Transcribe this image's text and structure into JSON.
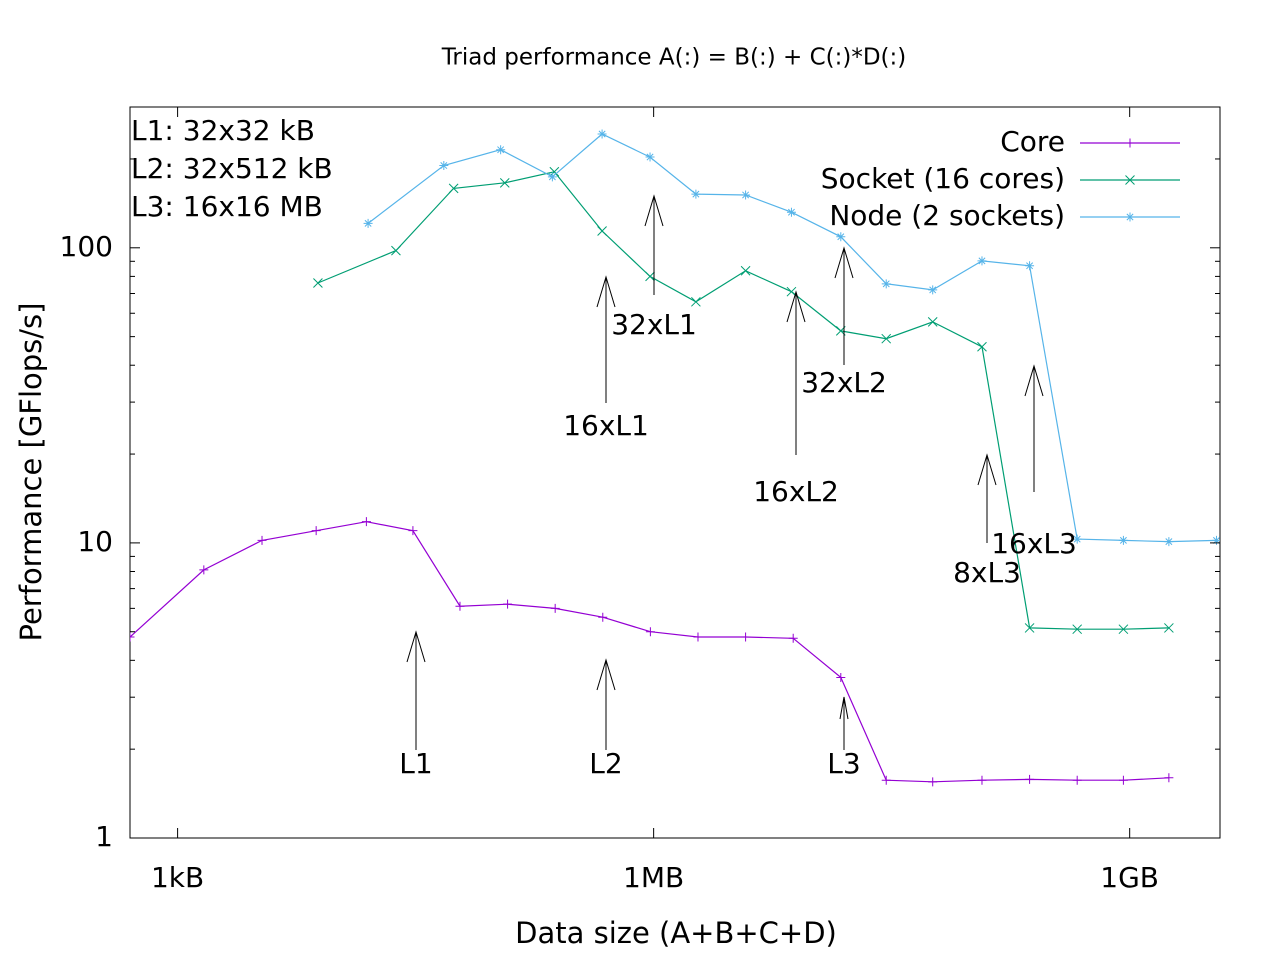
{
  "chart_data": {
    "type": "line",
    "title": "Triad performance A(:) = B(:) + C(:)*D(:)",
    "xlabel": "Data size (A+B+C+D)",
    "ylabel": "Performance [GFlops/s]",
    "xscale": "log",
    "yscale": "log",
    "xlim": [
      512,
      4000000000
    ],
    "ylim": [
      1,
      300
    ],
    "xticks": [
      {
        "value": 1024,
        "label": "1kB"
      },
      {
        "value": 1048576,
        "label": "1MB"
      },
      {
        "value": 1073741824,
        "label": "1GB"
      }
    ],
    "yticks": [
      1,
      10,
      100
    ],
    "yminorticks": [
      2,
      3,
      4,
      5,
      6,
      7,
      8,
      9,
      20,
      30,
      40,
      50,
      60,
      70,
      80,
      90,
      200,
      300
    ],
    "legend": "top-right",
    "info": [
      "L1: 32x32 kB",
      "L2: 32x512 kB",
      "L3: 16x16 MB"
    ],
    "annotations": [
      "L1",
      "L2",
      "L3",
      "16xL1",
      "32xL1",
      "16xL2",
      "32xL2",
      "8xL3",
      "16xL3"
    ],
    "series": [
      {
        "name": "Core",
        "color": "#9400d3",
        "marker": "+",
        "x": [
          512,
          1500,
          3500,
          7700,
          16000,
          31500,
          62500,
          125000,
          250000,
          500000,
          1000000,
          2000000,
          4000000,
          8000000,
          16000000,
          31000000,
          61000000,
          125000000,
          250000000,
          500000000,
          980000000,
          1900000000
        ],
        "values": [
          4.8,
          8.1,
          10.2,
          11.0,
          11.8,
          11.0,
          6.1,
          6.2,
          6.0,
          5.6,
          5.0,
          4.8,
          4.8,
          4.75,
          3.5,
          1.57,
          1.55,
          1.57,
          1.58,
          1.57,
          1.57,
          1.6
        ]
      },
      {
        "name": "Socket (16 cores)",
        "color": "#009e73",
        "marker": "x",
        "x": [
          7900,
          24600,
          57000,
          120000,
          247000,
          495000,
          995000,
          1940000,
          4000000,
          7800000,
          16000000,
          31000000,
          61000000,
          125000000,
          250000000,
          500000000,
          980000000,
          1900000000
        ],
        "values": [
          76,
          97.8,
          159,
          166,
          181,
          114,
          80,
          65.6,
          83.6,
          71,
          52.3,
          49.2,
          56.1,
          46.2,
          5.15,
          5.1,
          5.1,
          5.15
        ]
      },
      {
        "name": "Node (2 sockets)",
        "color": "#56b4e9",
        "marker": "*",
        "x": [
          16400,
          49400,
          113000,
          240000,
          495000,
          995000,
          1940000,
          4000000,
          7800000,
          16000000,
          31000000,
          61000000,
          125000000,
          250000000,
          500000000,
          980000000,
          1900000000,
          3800000000
        ],
        "values": [
          121,
          190,
          215,
          174,
          243,
          203,
          152,
          151,
          132,
          109,
          75.5,
          72,
          90.3,
          86.9,
          10.3,
          10.2,
          10.1,
          10.2
        ]
      }
    ]
  }
}
